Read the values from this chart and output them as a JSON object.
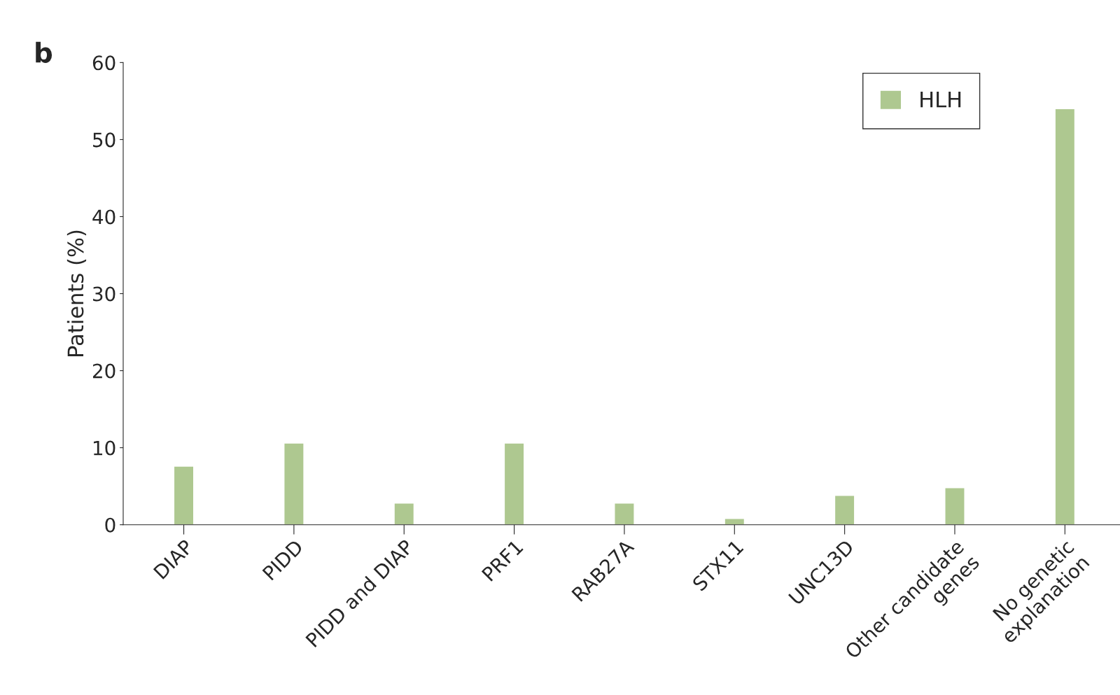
{
  "chart_data": {
    "type": "bar",
    "ylabel": "Patients (%)",
    "annotations": [
      "b"
    ],
    "categories": [
      "DIAP",
      "PIDD",
      "PIDD and DIAP",
      "PRF1",
      "RAB27A",
      "STX11",
      "UNC13D",
      "Other candidate\ngenes",
      "No genetic\nexplanation"
    ],
    "series": [
      {
        "name": "HLH",
        "color": "#aec890",
        "values": [
          7.6,
          10.6,
          2.8,
          10.6,
          2.8,
          0.8,
          3.8,
          4.8,
          54
        ]
      }
    ],
    "ylim": [
      0,
      60
    ],
    "yticks": [
      0,
      10,
      20,
      30,
      40,
      50,
      60
    ],
    "grid": false,
    "legend": "top right"
  }
}
